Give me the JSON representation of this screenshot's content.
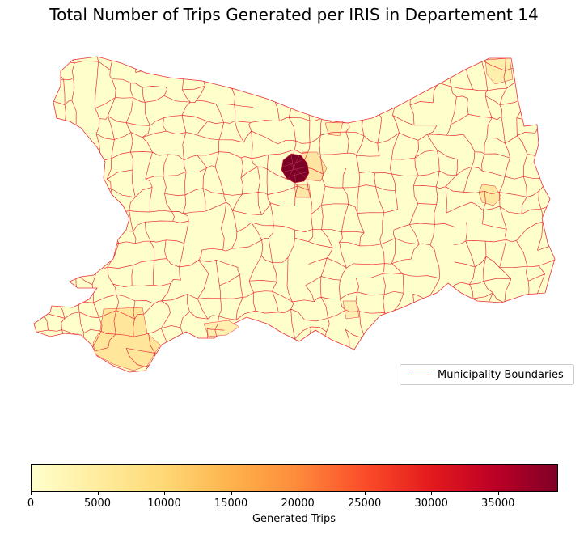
{
  "title": "Total Number of Trips Generated per IRIS in Departement 14",
  "legend": {
    "label": "Municipality Boundaries",
    "color": "#e8303a"
  },
  "colorbar": {
    "label": "Generated Trips",
    "min": 0,
    "max": 39500,
    "ticks": [
      "0",
      "5000",
      "10000",
      "15000",
      "20000",
      "25000",
      "30000",
      "35000"
    ],
    "colormap": "YlOrRd"
  },
  "colors": {
    "base": "#ffffcc",
    "low": "#ffeda0",
    "mid": "#fed976",
    "high": "#800026",
    "boundary": "#e8303a"
  }
}
